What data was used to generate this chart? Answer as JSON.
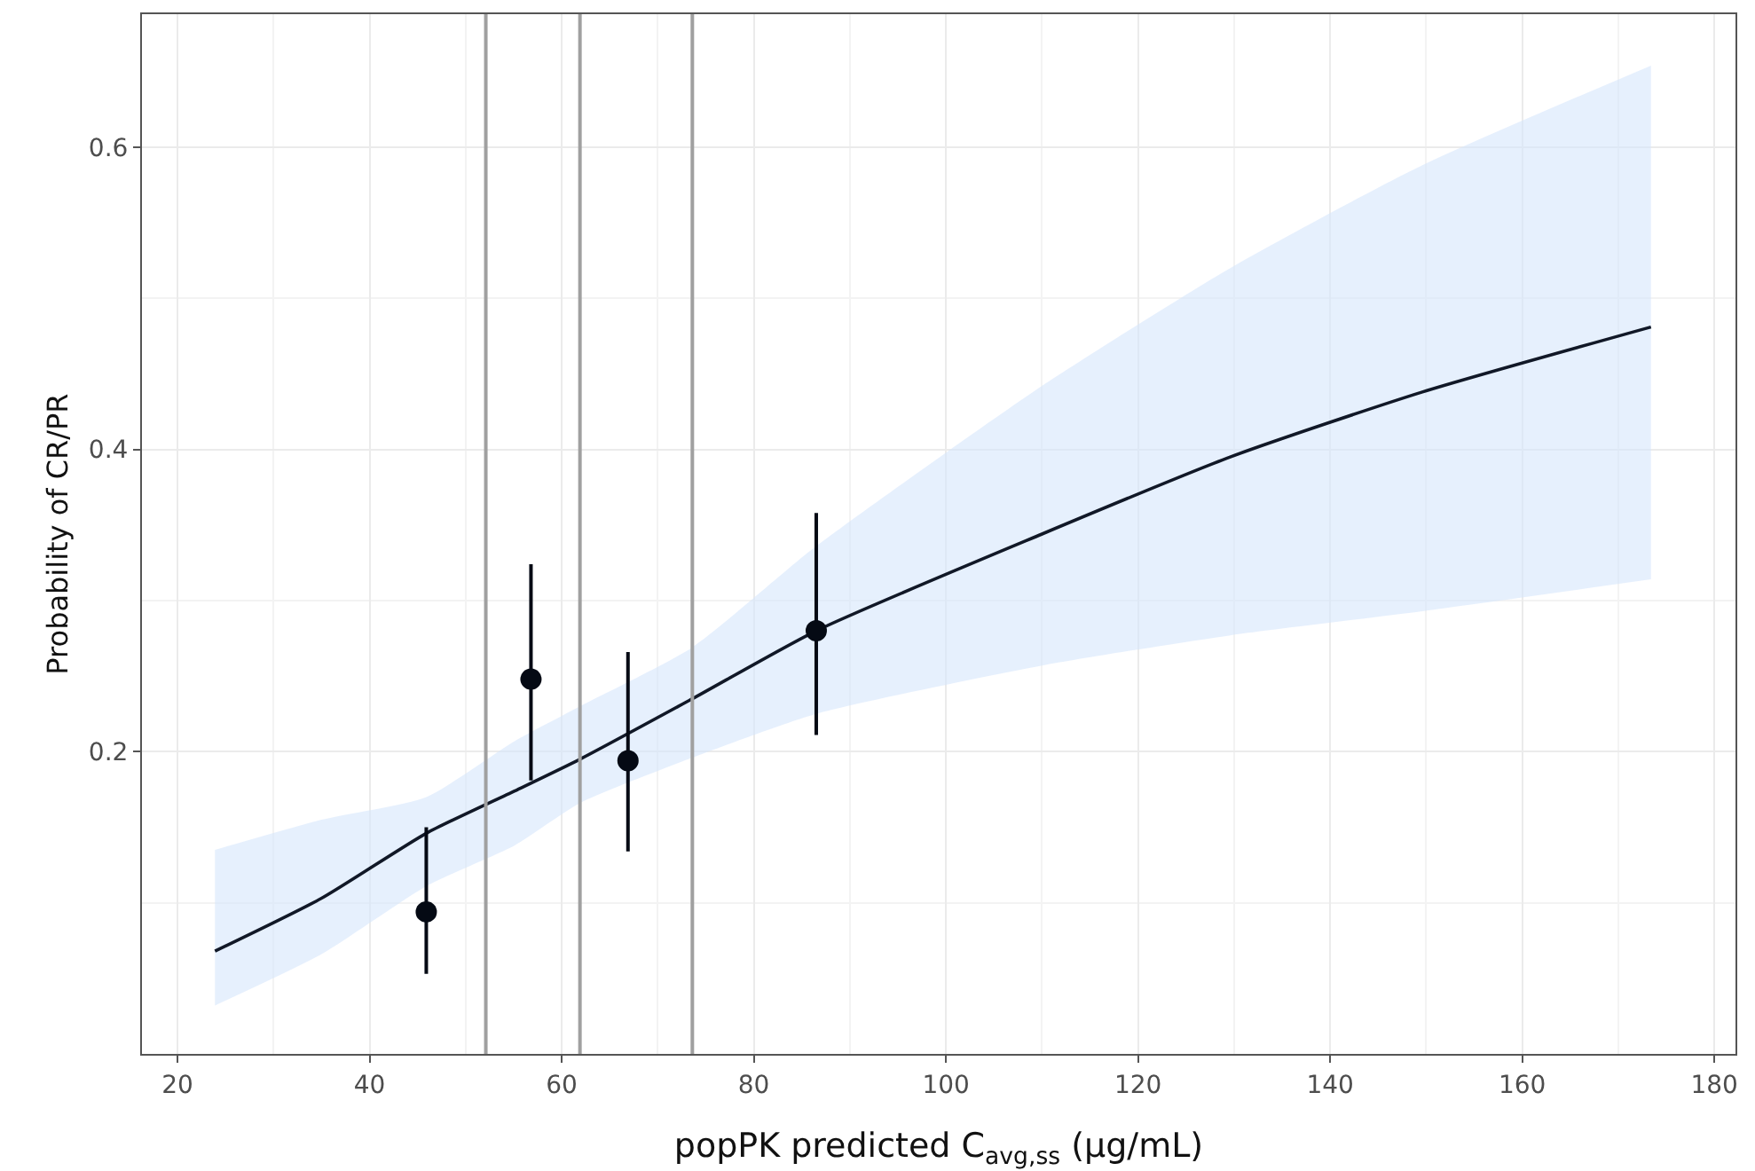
{
  "chart_data": {
    "type": "line",
    "xlabel": "popPK predicted C$_{avg,ss}$ (µg/mL)",
    "ylabel": "Probability of CR/PR",
    "xlim": [
      16.3,
      182.2
    ],
    "ylim": [
      0.0,
      0.688
    ],
    "xticks": [
      20,
      40,
      60,
      80,
      100,
      120,
      140,
      160,
      180
    ],
    "yticks": [
      0.2,
      0.4,
      0.6
    ],
    "grid": true,
    "series": [
      {
        "color": "#111827",
        "line_style": "solid",
        "marker": "none",
        "x": [
          23.9,
          35,
          45.9,
          55.1,
          61.9,
          73.6,
          86.5,
          110,
          129.6,
          149.6,
          173.4
        ],
        "values": [
          0.068,
          0.103,
          0.146,
          0.174,
          0.195,
          0.235,
          0.28,
          0.344,
          0.395,
          0.438,
          0.481
        ],
        "lower": [
          0.032,
          0.066,
          0.111,
          0.138,
          0.166,
          0.196,
          0.225,
          0.257,
          0.277,
          0.293,
          0.314
        ],
        "upper": [
          0.135,
          0.155,
          0.17,
          0.207,
          0.23,
          0.269,
          0.336,
          0.442,
          0.52,
          0.588,
          0.654
        ]
      },
      {
        "type": "scatter",
        "color": "#050a14",
        "marker": "circle",
        "x": [
          45.9,
          56.8,
          66.9,
          86.5
        ],
        "values": [
          0.094,
          0.248,
          0.194,
          0.28
        ],
        "errors": [
          [
            0.053,
            0.15
          ],
          [
            0.181,
            0.324
          ],
          [
            0.134,
            0.266
          ],
          [
            0.211,
            0.358
          ]
        ]
      }
    ],
    "ref_lines": [
      {
        "axis": "x",
        "value": 52.1,
        "color": "#a0a0a0"
      },
      {
        "axis": "x",
        "value": 61.9,
        "color": "#a0a0a0"
      },
      {
        "axis": "x",
        "value": 73.6,
        "color": "#a0a0a0"
      }
    ]
  }
}
